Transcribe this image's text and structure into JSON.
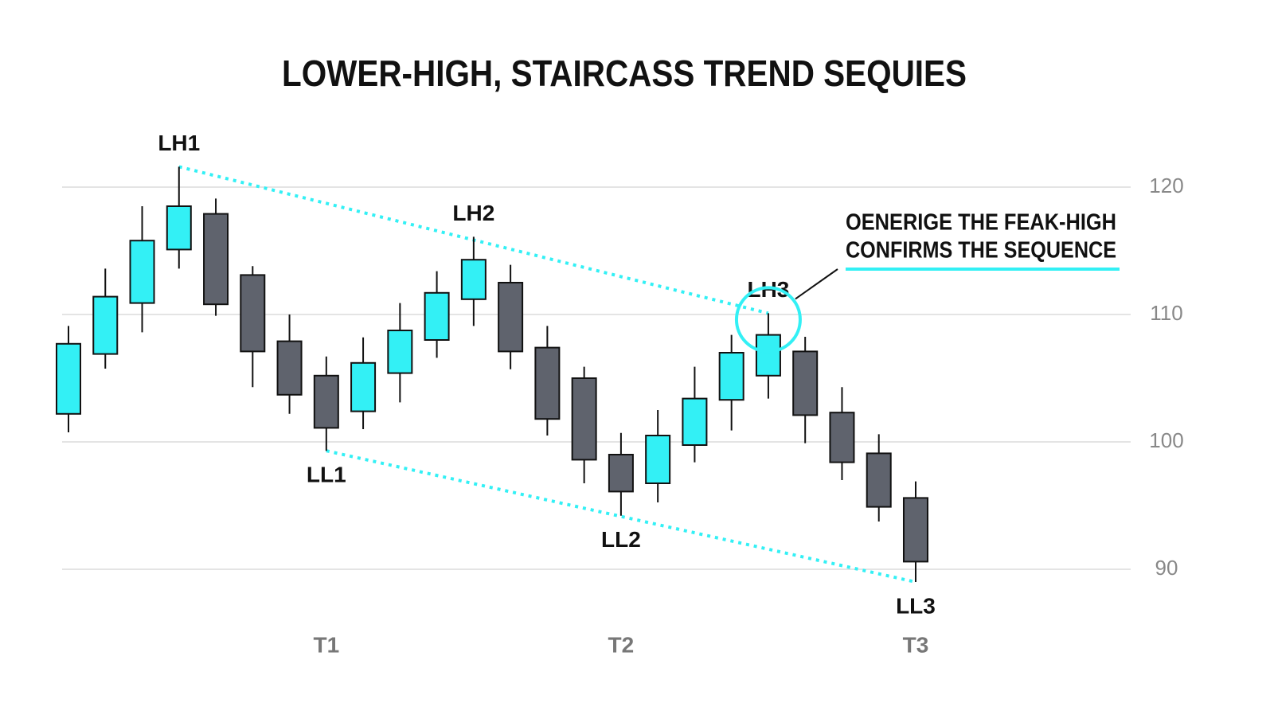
{
  "chart_data": {
    "type": "candlestick",
    "title": "LOWER-HIGH, STAIRCASS TREND SEQUIES",
    "categories": [
      null,
      null,
      null,
      null,
      null,
      null,
      null,
      "T1",
      null,
      null,
      null,
      null,
      null,
      null,
      null,
      "T2",
      null,
      null,
      null,
      null,
      null,
      null,
      null,
      "T3"
    ],
    "open": [
      102.2,
      106.9,
      110.9,
      115.1,
      117.9,
      113.1,
      107.9,
      105.2,
      102.4,
      105.4,
      108.0,
      111.2,
      112.5,
      107.4,
      105.0,
      99.0,
      96.75,
      99.75,
      103.3,
      105.2,
      107.1,
      102.3,
      99.1,
      95.6
    ],
    "high": [
      109.1,
      113.6,
      118.5,
      121.6,
      119.1,
      113.8,
      110.0,
      106.7,
      108.2,
      110.9,
      113.4,
      116.1,
      113.9,
      109.1,
      105.9,
      100.7,
      102.5,
      105.9,
      108.4,
      110.1,
      108.25,
      104.3,
      100.6,
      96.9
    ],
    "low": [
      100.75,
      105.75,
      108.6,
      113.6,
      109.9,
      104.3,
      102.2,
      99.3,
      101.0,
      103.1,
      106.6,
      109.1,
      105.7,
      100.5,
      96.75,
      94.2,
      95.25,
      98.4,
      100.9,
      103.4,
      99.9,
      97.0,
      93.75,
      89.0
    ],
    "close": [
      107.7,
      111.4,
      115.8,
      118.5,
      110.8,
      107.1,
      103.7,
      101.1,
      106.2,
      108.75,
      111.7,
      114.3,
      107.1,
      101.8,
      98.6,
      96.1,
      100.5,
      103.4,
      107.0,
      108.4,
      102.1,
      98.4,
      94.9,
      90.6
    ],
    "up_color": "#33f0f5",
    "down_color": "#5f636d",
    "ylim": [
      86,
      125
    ],
    "yticks": [
      90,
      100,
      110,
      120
    ],
    "grid": true,
    "swing_points": [
      {
        "label": "LH1",
        "index": 3,
        "at": "high"
      },
      {
        "label": "LH2",
        "index": 11,
        "at": "high"
      },
      {
        "label": "LH3",
        "index": 19,
        "at": "high"
      },
      {
        "label": "LL1",
        "index": 7,
        "at": "low"
      },
      {
        "label": "LL2",
        "index": 15,
        "at": "low"
      },
      {
        "label": "LL3",
        "index": 23,
        "at": "low"
      }
    ],
    "callout": [
      "OENERIGE THE FEAK-HIGH",
      "CONFIRMS THE SEQUENCE"
    ]
  }
}
